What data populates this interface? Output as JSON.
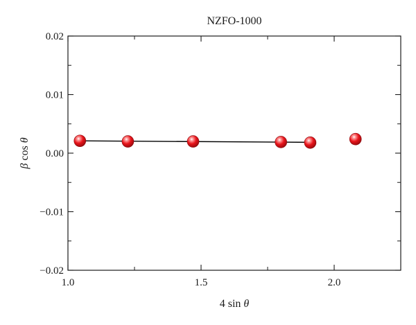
{
  "chart_data": {
    "type": "scatter",
    "title": "NZFO-1000",
    "xlabel_parts": [
      "4 sin ",
      "θ"
    ],
    "ylabel_parts": [
      "β",
      " cos ",
      "θ"
    ],
    "xlim": [
      1.0,
      2.25
    ],
    "ylim": [
      -0.02,
      0.02
    ],
    "x_ticks": [
      {
        "value": 1.0,
        "label": "1.0"
      },
      {
        "value": 1.5,
        "label": "1.5"
      },
      {
        "value": 2.0,
        "label": "2.0"
      }
    ],
    "x_minor_ticks": [
      1.25,
      1.75
    ],
    "y_ticks": [
      {
        "value": -0.02,
        "label": "−0.02"
      },
      {
        "value": -0.01,
        "label": "−0.01"
      },
      {
        "value": 0.0,
        "label": "0.00"
      },
      {
        "value": 0.01,
        "label": "0.01"
      },
      {
        "value": 0.02,
        "label": "0.02"
      }
    ],
    "y_minor_ticks": [
      -0.015,
      -0.005,
      0.005,
      0.015
    ],
    "points": [
      {
        "x": 1.045,
        "y": 0.0021
      },
      {
        "x": 1.225,
        "y": 0.002
      },
      {
        "x": 1.47,
        "y": 0.002
      },
      {
        "x": 1.8,
        "y": 0.0019
      },
      {
        "x": 1.91,
        "y": 0.0018
      },
      {
        "x": 2.08,
        "y": 0.0024
      }
    ],
    "fit_line": {
      "x": [
        1.045,
        1.91
      ],
      "y": [
        0.0021,
        0.00185
      ]
    },
    "grid": false,
    "marker_color": "#e8131a",
    "line_color": "#000000"
  }
}
